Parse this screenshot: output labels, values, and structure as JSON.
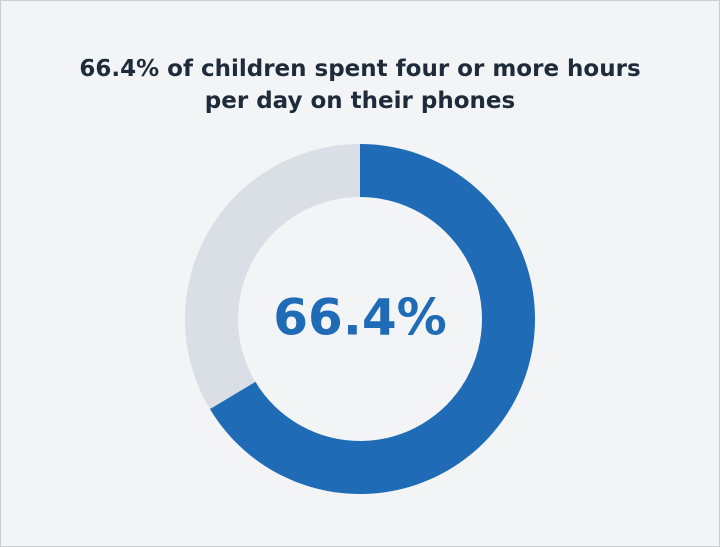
{
  "chart_data": {
    "type": "donut",
    "title": "66.4% of children spent four or more hours per day on their phones",
    "values": [
      66.4,
      33.6
    ],
    "value_labels": [
      "66.4%",
      null
    ],
    "colors": [
      "#1f6bb5",
      "#d9dfe4"
    ],
    "start_angle": 0,
    "direction": "clockwise"
  }
}
